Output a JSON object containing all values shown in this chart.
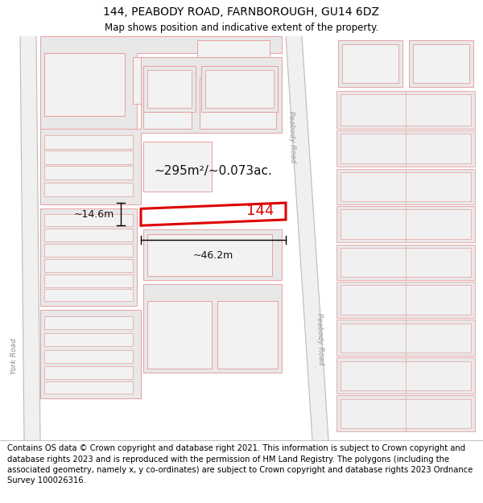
{
  "title": "144, PEABODY ROAD, FARNBOROUGH, GU14 6DZ",
  "subtitle": "Map shows position and indicative extent of the property.",
  "footer": "Contains OS data © Crown copyright and database right 2021. This information is subject to Crown copyright and database rights 2023 and is reproduced with the permission of HM Land Registry. The polygons (including the associated geometry, namely x, y co-ordinates) are subject to Crown copyright and database rights 2023 Ordnance Survey 100026316.",
  "map_bg": "#ffffff",
  "bld_face": "#e8e8e8",
  "bld_edge": "#e8a0a0",
  "road_color": "#d0d0d0",
  "highlight_color": "#dd0000",
  "title_fontsize": 10,
  "subtitle_fontsize": 8.5,
  "footer_fontsize": 7.2,
  "area_label": "~295m²/~0.073ac.",
  "dim_width": "~46.2m",
  "dim_height": "~14.6m",
  "property_label": "144",
  "road_label_left": "York Road",
  "road_label_right_top": "Peabody Road",
  "road_label_right_bottom": "Peabody Road"
}
